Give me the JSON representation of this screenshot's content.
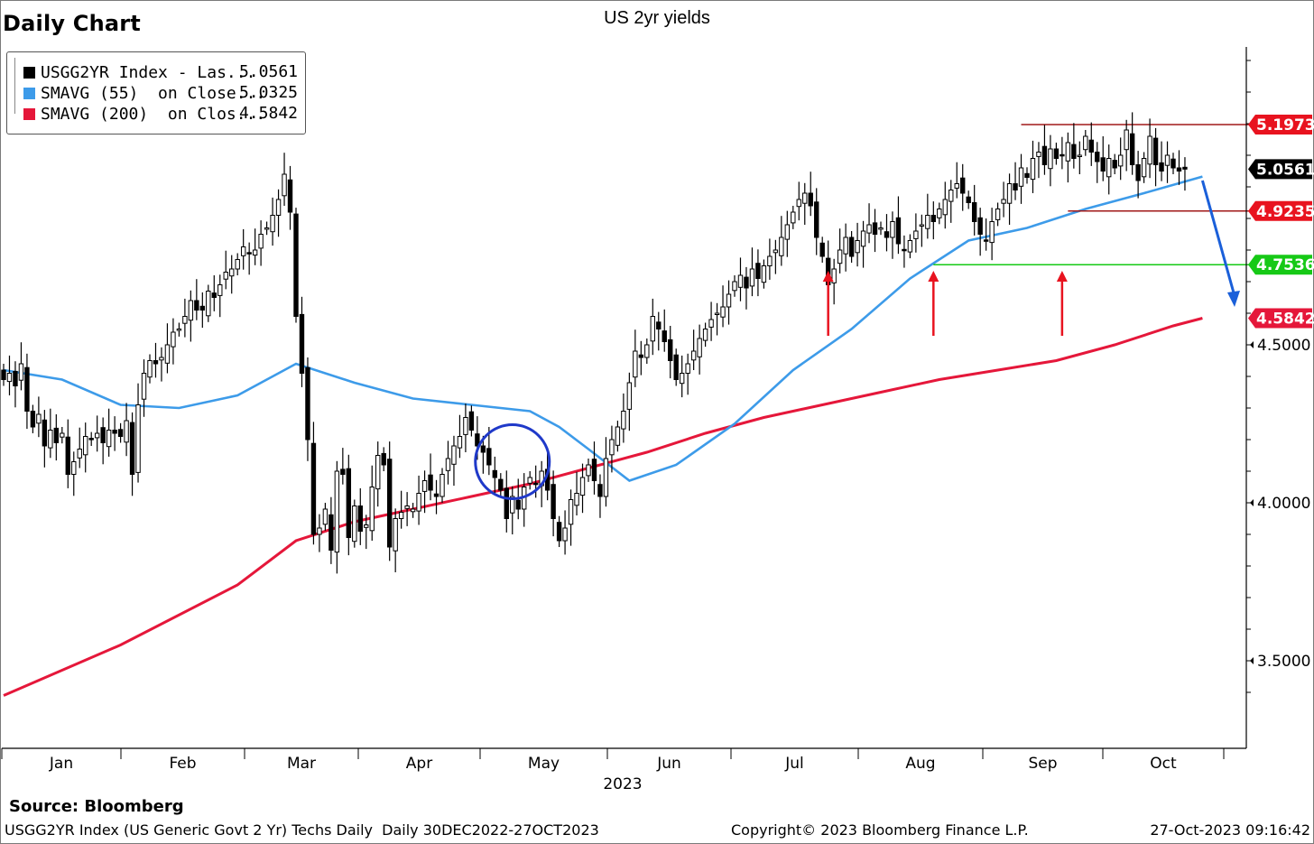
{
  "heading": "Daily Chart",
  "source": "Source: Bloomberg",
  "footer": {
    "left": "USGG2YR Index (US Generic Govt 2 Yr) Techs Daily  Daily 30DEC2022-27OCT2023",
    "center": "Copyright© 2023 Bloomberg Finance L.P.",
    "right": "27-Oct-2023 09:16:42"
  },
  "legend": [
    {
      "label": "USGG2YR Index - Las...",
      "value": "5.0561",
      "color": "#000000"
    },
    {
      "label": "SMAVG (55)  on Close...",
      "value": "5.0325",
      "color": "#3d9be9"
    },
    {
      "label": "SMAVG (200)  on Clos...",
      "value": "4.5842",
      "color": "#e5173a"
    }
  ],
  "chart_data": {
    "type": "line",
    "title": "US 2yr yields",
    "xlabel": "2023",
    "ylabel": "",
    "ylim": [
      3.3,
      5.5
    ],
    "x_axis_side": "bottom",
    "y_axis_side": "right",
    "grid": false,
    "legend_position": "top-left",
    "x_tick_labels": [
      "Jan",
      "Feb",
      "Mar",
      "Apr",
      "May",
      "Jun",
      "Jul",
      "Aug",
      "Sep",
      "Oct"
    ],
    "y_tick_labels": [
      "3.5000",
      "4.0000",
      "4.5000"
    ],
    "price_labels": [
      {
        "text": "5.1973",
        "value": 5.1973,
        "color": "#e8131f"
      },
      {
        "text": "5.0561",
        "value": 5.0561,
        "color": "#000000"
      },
      {
        "text": "4.9235",
        "value": 4.9235,
        "color": "#e8131f"
      },
      {
        "text": "4.7536",
        "value": 4.7536,
        "color": "#16c916"
      },
      {
        "text": "4.5842",
        "value": 4.5842,
        "color": "#e5173a"
      }
    ],
    "candles_close": [
      4.39,
      4.41,
      4.37,
      4.44,
      4.29,
      4.24,
      4.28,
      4.18,
      4.23,
      4.19,
      4.22,
      4.09,
      4.13,
      4.17,
      4.21,
      4.2,
      4.22,
      4.19,
      4.23,
      4.22,
      4.21,
      4.26,
      4.09,
      4.31,
      4.41,
      4.45,
      4.44,
      4.46,
      4.5,
      4.54,
      4.55,
      4.59,
      4.64,
      4.61,
      4.61,
      4.67,
      4.65,
      4.69,
      4.73,
      4.74,
      4.77,
      4.81,
      4.79,
      4.8,
      4.85,
      4.87,
      4.91,
      4.96,
      5.04,
      4.92,
      4.59,
      4.41,
      4.2,
      3.9,
      3.92,
      3.98,
      3.85,
      4.1,
      4.09,
      3.89,
      3.99,
      3.91,
      3.93,
      4.05,
      4.15,
      4.12,
      3.86,
      3.95,
      3.97,
      3.99,
      3.98,
      4.03,
      4.07,
      4.04,
      4.02,
      4.09,
      4.14,
      4.18,
      4.21,
      4.27,
      4.23,
      4.18,
      4.16,
      4.12,
      4.08,
      4.04,
      3.95,
      4.02,
      3.98,
      4.05,
      4.08,
      4.06,
      4.1,
      4.04,
      3.95,
      3.88,
      3.92,
      4.01,
      4.03,
      4.08,
      4.12,
      4.07,
      4.02,
      4.14,
      4.2,
      4.24,
      4.29,
      4.38,
      4.48,
      4.46,
      4.5,
      4.59,
      4.55,
      4.51,
      4.45,
      4.39,
      4.41,
      4.44,
      4.48,
      4.52,
      4.55,
      4.58,
      4.6,
      4.62,
      4.66,
      4.7,
      4.72,
      4.68,
      4.74,
      4.71,
      4.75,
      4.78,
      4.8,
      4.84,
      4.88,
      4.92,
      4.96,
      4.98,
      4.94,
      4.84,
      4.78,
      4.69,
      4.74,
      4.8,
      4.84,
      4.78,
      4.83,
      4.86,
      4.88,
      4.85,
      4.87,
      4.84,
      4.89,
      4.82,
      4.8,
      4.83,
      4.86,
      4.88,
      4.91,
      4.89,
      4.93,
      4.96,
      4.99,
      5.01,
      4.98,
      4.95,
      4.89,
      4.85,
      4.83,
      4.89,
      4.93,
      4.96,
      5.01,
      4.99,
      5.06,
      5.03,
      5.09,
      5.11,
      5.07,
      5.12,
      5.09,
      5.1,
      5.14,
      5.09,
      5.1,
      5.16,
      5.11,
      5.08,
      5.05,
      5.09,
      5.06,
      5.1,
      5.18,
      5.07,
      5.02,
      5.09,
      5.16,
      5.07,
      5.05,
      5.1,
      5.06,
      5.05,
      5.0561
    ],
    "series": [
      {
        "name": "SMAVG (55)  on Close...",
        "color": "#3d9be9",
        "x": [
          0,
          10,
          20,
          30,
          40,
          50,
          60,
          70,
          80,
          90,
          95,
          100,
          107,
          115,
          125,
          135,
          145,
          155,
          165,
          175,
          185,
          195,
          205
        ],
        "values": [
          4.42,
          4.39,
          4.31,
          4.3,
          4.34,
          4.44,
          4.38,
          4.33,
          4.31,
          4.29,
          4.24,
          4.17,
          4.07,
          4.12,
          4.25,
          4.42,
          4.55,
          4.71,
          4.83,
          4.87,
          4.93,
          4.98,
          5.0325
        ]
      },
      {
        "name": "SMAVG (200)  on Clos...",
        "color": "#e5173a",
        "x": [
          0,
          20,
          40,
          50,
          60,
          70,
          80,
          90,
          100,
          110,
          120,
          130,
          140,
          150,
          160,
          170,
          180,
          190,
          200,
          205
        ],
        "values": [
          3.39,
          3.55,
          3.74,
          3.88,
          3.94,
          3.98,
          4.02,
          4.06,
          4.11,
          4.16,
          4.22,
          4.27,
          4.31,
          4.35,
          4.39,
          4.42,
          4.45,
          4.5,
          4.56,
          4.5842
        ]
      }
    ],
    "annotations": {
      "support_resistance": [
        {
          "value": 5.1973,
          "from": 174,
          "to": 205,
          "color": "#a01818"
        },
        {
          "value": 4.9235,
          "from": 182,
          "to": 205,
          "color": "#a01818"
        },
        {
          "value": 4.7536,
          "from": 159,
          "to": 205,
          "color": "#16c916"
        }
      ],
      "up_arrows_at": [
        141,
        159,
        181
      ],
      "circle_at": 87
    }
  }
}
